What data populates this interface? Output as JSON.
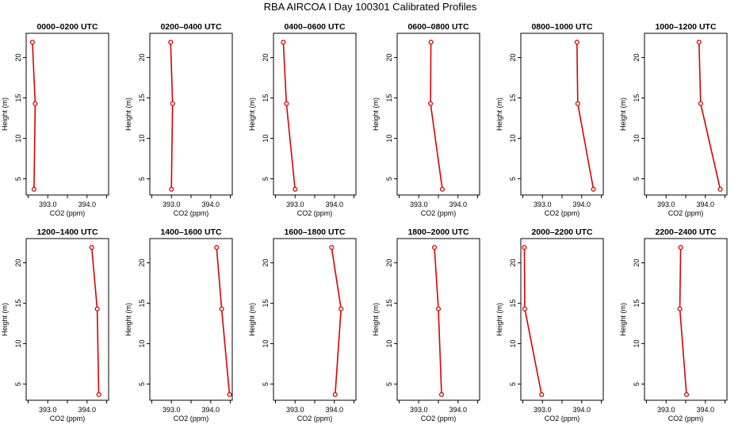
{
  "figure_title": "RBA AIRCOA I  Day 100301  Calibrated Profiles",
  "chart_data": [
    {
      "type": "line",
      "title": "0000–0200 UTC",
      "xlabel": "CO2 (ppm)",
      "ylabel": "Height (m)",
      "xlim": [
        392.45,
        394.55
      ],
      "ylim": [
        3,
        23
      ],
      "xticks": [
        393.0,
        394.0
      ],
      "xtick_labels": [
        "393.0",
        "394.0"
      ],
      "yticks": [
        5,
        10,
        15,
        20
      ],
      "ytick_labels": [
        "5",
        "10",
        "15",
        "20"
      ],
      "x": [
        392.65,
        392.68,
        392.61
      ],
      "y": [
        3.7,
        14.3,
        21.9
      ]
    },
    {
      "type": "line",
      "title": "0200–0400 UTC",
      "xlabel": "CO2 (ppm)",
      "ylabel": "Height (m)",
      "xlim": [
        392.45,
        394.55
      ],
      "ylim": [
        3,
        23
      ],
      "xticks": [
        393.0,
        394.0
      ],
      "xtick_labels": [
        "393.0",
        "394.0"
      ],
      "yticks": [
        5,
        10,
        15,
        20
      ],
      "ytick_labels": [
        "5",
        "10",
        "15",
        "20"
      ],
      "x": [
        393.0,
        393.03,
        392.98
      ],
      "y": [
        3.7,
        14.3,
        21.9
      ]
    },
    {
      "type": "line",
      "title": "0400–0600 UTC",
      "xlabel": "CO2 (ppm)",
      "ylabel": "Height (m)",
      "xlim": [
        392.45,
        394.55
      ],
      "ylim": [
        3,
        23
      ],
      "xticks": [
        393.0,
        394.0
      ],
      "xtick_labels": [
        "393.0",
        "394.0"
      ],
      "yticks": [
        5,
        10,
        15,
        20
      ],
      "ytick_labels": [
        "5",
        "10",
        "15",
        "20"
      ],
      "x": [
        393.0,
        392.78,
        392.7
      ],
      "y": [
        3.7,
        14.3,
        21.9
      ]
    },
    {
      "type": "line",
      "title": "0600–0800 UTC",
      "xlabel": "CO2 (ppm)",
      "ylabel": "Height (m)",
      "xlim": [
        392.45,
        394.55
      ],
      "ylim": [
        3,
        23
      ],
      "xticks": [
        393.0,
        394.0
      ],
      "xtick_labels": [
        "393.0",
        "394.0"
      ],
      "yticks": [
        5,
        10,
        15,
        20
      ],
      "ytick_labels": [
        "5",
        "10",
        "15",
        "20"
      ],
      "x": [
        393.6,
        393.3,
        393.31
      ],
      "y": [
        3.7,
        14.3,
        21.9
      ]
    },
    {
      "type": "line",
      "title": "0800–1000 UTC",
      "xlabel": "CO2 (ppm)",
      "ylabel": "Height (m)",
      "xlim": [
        392.45,
        394.55
      ],
      "ylim": [
        3,
        23
      ],
      "xticks": [
        393.0,
        394.0
      ],
      "xtick_labels": [
        "393.0",
        "394.0"
      ],
      "yticks": [
        5,
        10,
        15,
        20
      ],
      "ytick_labels": [
        "5",
        "10",
        "15",
        "20"
      ],
      "x": [
        394.3,
        393.9,
        393.88
      ],
      "y": [
        3.7,
        14.3,
        21.9
      ]
    },
    {
      "type": "line",
      "title": "1000–1200 UTC",
      "xlabel": "CO2 (ppm)",
      "ylabel": "Height (m)",
      "xlim": [
        392.45,
        394.55
      ],
      "ylim": [
        3,
        23
      ],
      "xticks": [
        393.0,
        394.0
      ],
      "xtick_labels": [
        "393.0",
        "394.0"
      ],
      "yticks": [
        5,
        10,
        15,
        20
      ],
      "ytick_labels": [
        "5",
        "10",
        "15",
        "20"
      ],
      "x": [
        394.38,
        393.88,
        393.84
      ],
      "y": [
        3.7,
        14.3,
        21.9
      ]
    },
    {
      "type": "line",
      "title": "1200–1400 UTC",
      "xlabel": "CO2 (ppm)",
      "ylabel": "Height (m)",
      "xlim": [
        392.45,
        394.55
      ],
      "ylim": [
        3,
        23
      ],
      "xticks": [
        393.0,
        394.0
      ],
      "xtick_labels": [
        "393.0",
        "394.0"
      ],
      "yticks": [
        5,
        10,
        15,
        20
      ],
      "ytick_labels": [
        "5",
        "10",
        "15",
        "20"
      ],
      "x": [
        394.3,
        394.26,
        394.12
      ],
      "y": [
        3.7,
        14.3,
        21.9
      ]
    },
    {
      "type": "line",
      "title": "1400–1600 UTC",
      "xlabel": "CO2 (ppm)",
      "ylabel": "Height (m)",
      "xlim": [
        392.45,
        394.55
      ],
      "ylim": [
        3,
        23
      ],
      "xticks": [
        393.0,
        394.0
      ],
      "xtick_labels": [
        "393.0",
        "394.0"
      ],
      "yticks": [
        5,
        10,
        15,
        20
      ],
      "ytick_labels": [
        "5",
        "10",
        "15",
        "20"
      ],
      "x": [
        394.48,
        394.28,
        394.15
      ],
      "y": [
        3.7,
        14.3,
        21.9
      ]
    },
    {
      "type": "line",
      "title": "1600–1800 UTC",
      "xlabel": "CO2 (ppm)",
      "ylabel": "Height (m)",
      "xlim": [
        392.45,
        394.55
      ],
      "ylim": [
        3,
        23
      ],
      "xticks": [
        393.0,
        394.0
      ],
      "xtick_labels": [
        "393.0",
        "394.0"
      ],
      "yticks": [
        5,
        10,
        15,
        20
      ],
      "ytick_labels": [
        "5",
        "10",
        "15",
        "20"
      ],
      "x": [
        394.02,
        394.17,
        393.93
      ],
      "y": [
        3.7,
        14.3,
        21.9
      ]
    },
    {
      "type": "line",
      "title": "1800–2000 UTC",
      "xlabel": "CO2 (ppm)",
      "ylabel": "Height (m)",
      "xlim": [
        392.45,
        394.55
      ],
      "ylim": [
        3,
        23
      ],
      "xticks": [
        393.0,
        394.0
      ],
      "xtick_labels": [
        "393.0",
        "394.0"
      ],
      "yticks": [
        5,
        10,
        15,
        20
      ],
      "ytick_labels": [
        "5",
        "10",
        "15",
        "20"
      ],
      "x": [
        393.58,
        393.5,
        393.4
      ],
      "y": [
        3.7,
        14.3,
        21.9
      ]
    },
    {
      "type": "line",
      "title": "2000–2200 UTC",
      "xlabel": "CO2 (ppm)",
      "ylabel": "Height (m)",
      "xlim": [
        392.45,
        394.55
      ],
      "ylim": [
        3,
        23
      ],
      "xticks": [
        393.0,
        394.0
      ],
      "xtick_labels": [
        "393.0",
        "394.0"
      ],
      "yticks": [
        5,
        10,
        15,
        20
      ],
      "ytick_labels": [
        "5",
        "10",
        "15",
        "20"
      ],
      "x": [
        392.98,
        392.55,
        392.54
      ],
      "y": [
        3.7,
        14.3,
        21.9
      ]
    },
    {
      "type": "line",
      "title": "2200–2400 UTC",
      "xlabel": "CO2 (ppm)",
      "ylabel": "Height (m)",
      "xlim": [
        392.45,
        394.55
      ],
      "ylim": [
        3,
        23
      ],
      "xticks": [
        393.0,
        394.0
      ],
      "xtick_labels": [
        "393.0",
        "394.0"
      ],
      "yticks": [
        5,
        10,
        15,
        20
      ],
      "ytick_labels": [
        "5",
        "10",
        "15",
        "20"
      ],
      "x": [
        393.52,
        393.35,
        393.37
      ],
      "y": [
        3.7,
        14.3,
        21.9
      ]
    }
  ],
  "colors": {
    "line": "#dd0000",
    "marker": "#dd0000",
    "axis": "#000000"
  }
}
